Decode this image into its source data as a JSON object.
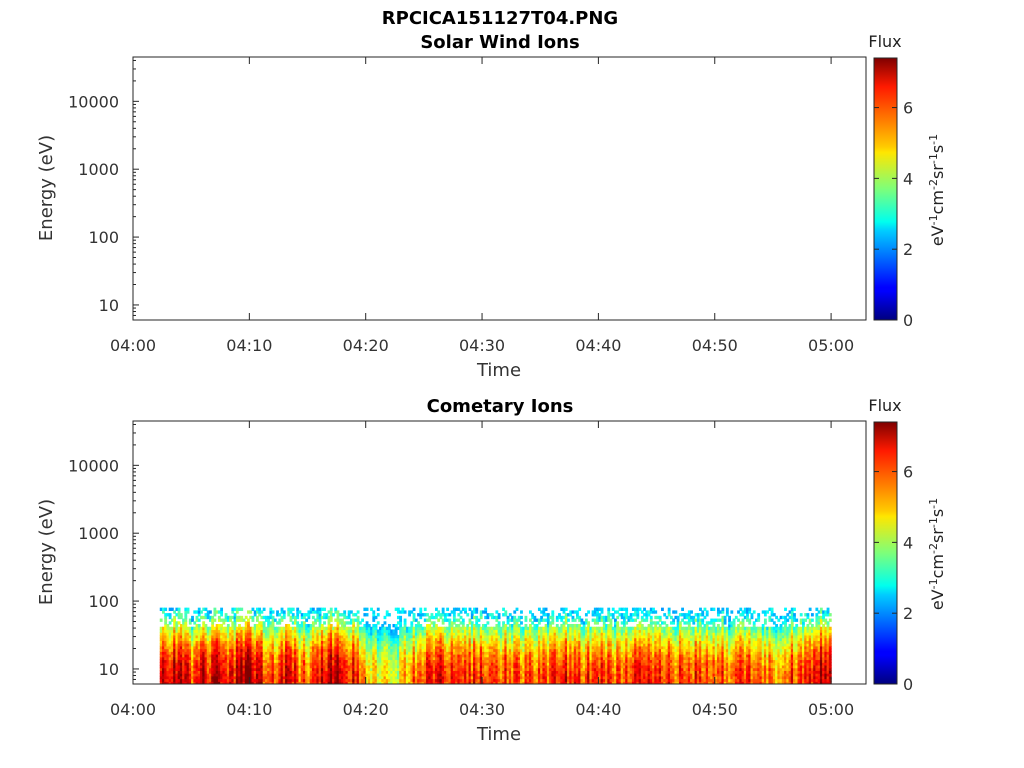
{
  "figure_title": "RPCICA151127T04.PNG",
  "chart_data": [
    {
      "type": "heatmap",
      "title": "Solar Wind Ions",
      "xlabel": "Time",
      "ylabel": "Energy (eV)",
      "x_ticks": [
        "04:00",
        "04:10",
        "04:20",
        "04:30",
        "04:40",
        "04:50",
        "05:00"
      ],
      "xlim_minutes": [
        0,
        63
      ],
      "y_ticks": [
        "10",
        "100",
        "1000",
        "10000"
      ],
      "y_scale": "log",
      "ylim": [
        6,
        45000
      ],
      "colorbar": {
        "label": "Flux",
        "unit_label": "eV-1cm-2sr-1s-1",
        "ticks": [
          "0",
          "2",
          "4",
          "6"
        ],
        "range": [
          0,
          7.4
        ],
        "colormap": "jet"
      },
      "data_note": "",
      "has_data": false
    },
    {
      "type": "heatmap",
      "title": "Cometary Ions",
      "xlabel": "Time",
      "ylabel": "Energy (eV)",
      "x_ticks": [
        "04:00",
        "04:10",
        "04:20",
        "04:30",
        "04:40",
        "04:50",
        "05:00"
      ],
      "xlim_minutes": [
        0,
        63
      ],
      "y_ticks": [
        "10",
        "100",
        "1000",
        "10000"
      ],
      "y_scale": "log",
      "ylim": [
        6,
        45000
      ],
      "colorbar": {
        "label": "Flux",
        "unit_label": "eV-1cm-2sr-1s-1",
        "ticks": [
          "0",
          "2",
          "4",
          "6"
        ],
        "range": [
          0,
          7.4
        ],
        "colormap": "jet"
      },
      "has_data": true,
      "data_time_range_minutes": [
        2.3,
        60
      ],
      "data_energy_range_eV": [
        6,
        80
      ],
      "intensity_profile": [
        {
          "t": 2.3,
          "v": 6.2
        },
        {
          "t": 3,
          "v": 6.8
        },
        {
          "t": 4,
          "v": 6.5
        },
        {
          "t": 5,
          "v": 6.0
        },
        {
          "t": 6,
          "v": 6.6
        },
        {
          "t": 7,
          "v": 6.9
        },
        {
          "t": 8,
          "v": 5.8
        },
        {
          "t": 9,
          "v": 7.2
        },
        {
          "t": 10,
          "v": 7.0
        },
        {
          "t": 11,
          "v": 6.4
        },
        {
          "t": 12,
          "v": 6.0
        },
        {
          "t": 13,
          "v": 6.7
        },
        {
          "t": 14,
          "v": 6.1
        },
        {
          "t": 15,
          "v": 5.6
        },
        {
          "t": 16,
          "v": 6.8
        },
        {
          "t": 17,
          "v": 7.0
        },
        {
          "t": 18,
          "v": 6.9
        },
        {
          "t": 19,
          "v": 6.3
        },
        {
          "t": 20,
          "v": 4.8
        },
        {
          "t": 21,
          "v": 4.6
        },
        {
          "t": 22,
          "v": 4.4
        },
        {
          "t": 23,
          "v": 4.9
        },
        {
          "t": 24,
          "v": 5.8
        },
        {
          "t": 25,
          "v": 6.1
        },
        {
          "t": 26,
          "v": 6.5
        },
        {
          "t": 27,
          "v": 6.2
        },
        {
          "t": 28,
          "v": 6.0
        },
        {
          "t": 29,
          "v": 6.3
        },
        {
          "t": 30,
          "v": 6.1
        },
        {
          "t": 31,
          "v": 5.9
        },
        {
          "t": 32,
          "v": 6.2
        },
        {
          "t": 33,
          "v": 5.8
        },
        {
          "t": 34,
          "v": 6.0
        },
        {
          "t": 35,
          "v": 5.7
        },
        {
          "t": 36,
          "v": 6.2
        },
        {
          "t": 37,
          "v": 6.4
        },
        {
          "t": 38,
          "v": 6.1
        },
        {
          "t": 39,
          "v": 6.0
        },
        {
          "t": 40,
          "v": 6.3
        },
        {
          "t": 41,
          "v": 6.1
        },
        {
          "t": 42,
          "v": 5.9
        },
        {
          "t": 43,
          "v": 6.2
        },
        {
          "t": 44,
          "v": 6.0
        },
        {
          "t": 45,
          "v": 6.3
        },
        {
          "t": 46,
          "v": 6.1
        },
        {
          "t": 47,
          "v": 5.9
        },
        {
          "t": 48,
          "v": 6.2
        },
        {
          "t": 49,
          "v": 6.0
        },
        {
          "t": 50,
          "v": 6.1
        },
        {
          "t": 51,
          "v": 5.8
        },
        {
          "t": 52,
          "v": 6.0
        },
        {
          "t": 53,
          "v": 6.2
        },
        {
          "t": 54,
          "v": 5.7
        },
        {
          "t": 55,
          "v": 5.5
        },
        {
          "t": 56,
          "v": 6.0
        },
        {
          "t": 57,
          "v": 5.8
        },
        {
          "t": 58,
          "v": 6.2
        },
        {
          "t": 59,
          "v": 6.9
        },
        {
          "t": 60,
          "v": 6.8
        }
      ]
    }
  ]
}
